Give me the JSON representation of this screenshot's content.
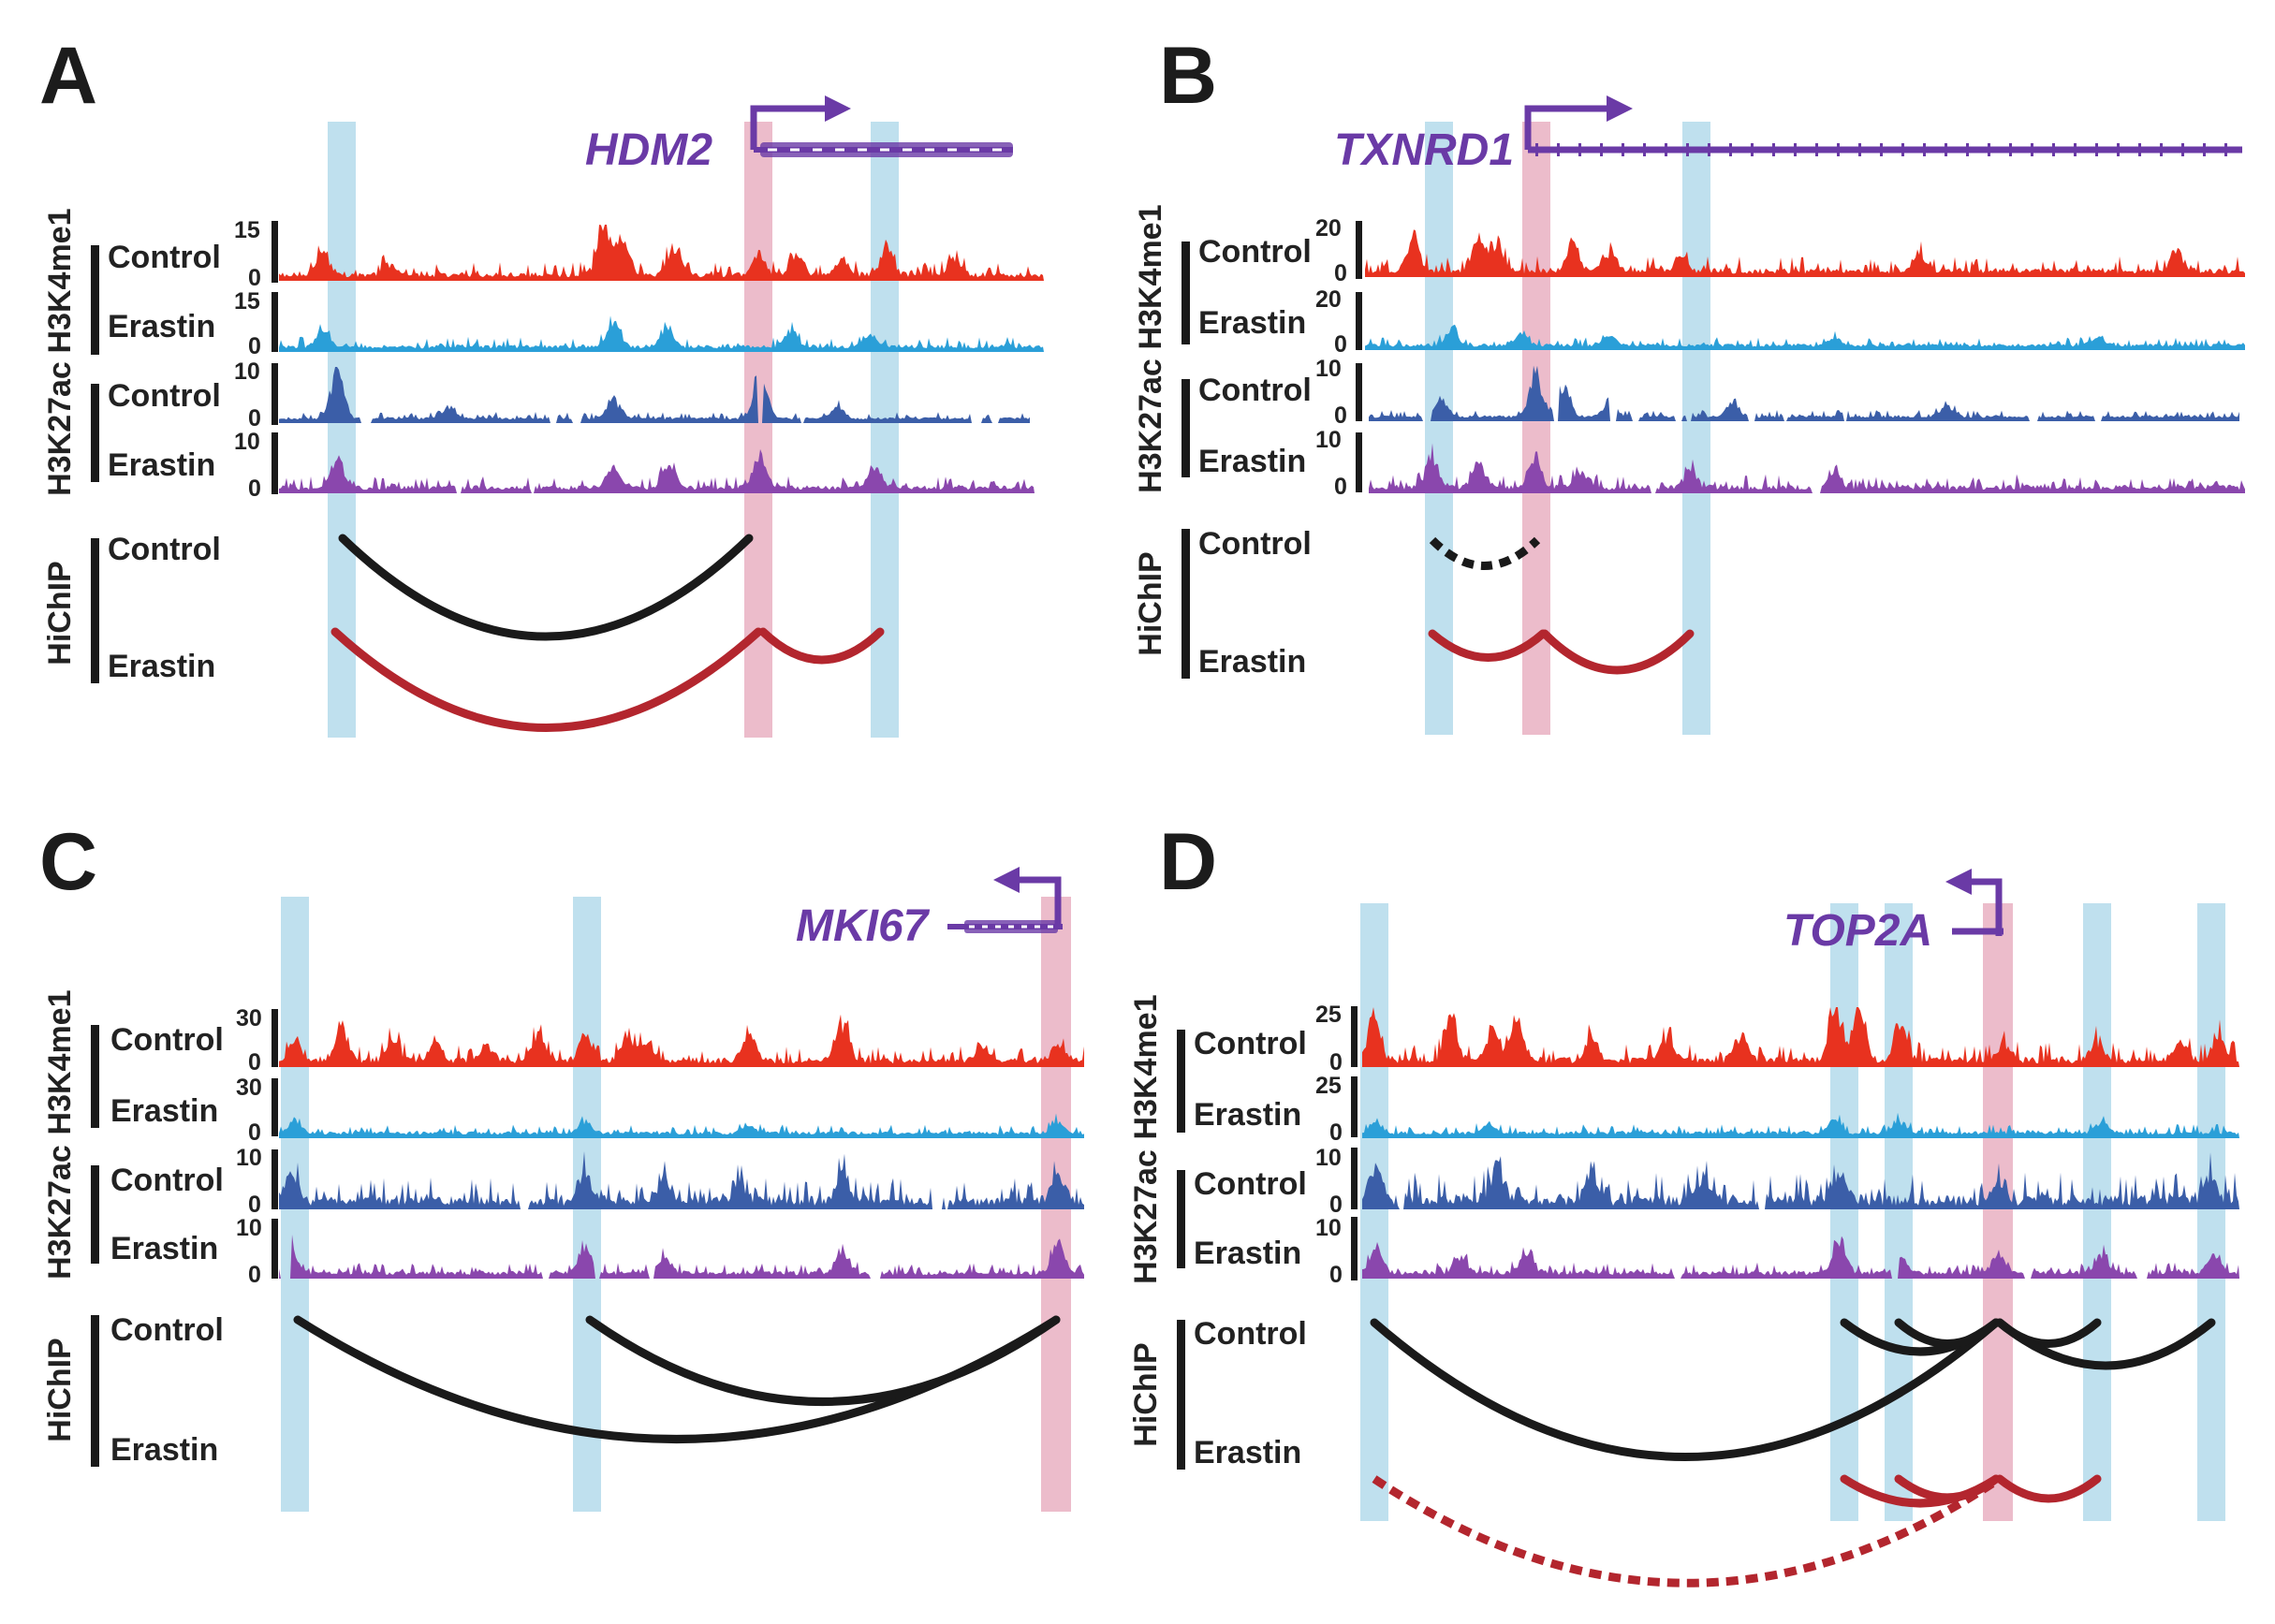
{
  "colors": {
    "h3k4me1_control": "#e8321f",
    "h3k4me1_erastin": "#2a9fd8",
    "h3k27ac_control": "#3b5ea8",
    "h3k27ac_erastin": "#8a47ad",
    "gene": "#6a3aa6",
    "hichip_control": "#1a1a1a",
    "hichip_erastin": "#b3262e",
    "enhancer_band": "#a9d6e8",
    "promoter_band": "#e6a5b9"
  },
  "marks": {
    "h3k4me1": "H3K4me1",
    "h3k27ac": "H3K27ac",
    "hichip": "HiChIP"
  },
  "conditions": {
    "control": "Control",
    "erastin": "Erastin"
  },
  "panels": [
    {
      "letter": "A",
      "gene": "HDM2",
      "scale_h3k4me1": {
        "max": "15",
        "min": "0"
      },
      "scale_h3k27ac": {
        "max": "10",
        "min": "0"
      }
    },
    {
      "letter": "B",
      "gene": "TXNRD1",
      "scale_h3k4me1": {
        "max": "20",
        "min": "0"
      },
      "scale_h3k27ac": {
        "max": "10",
        "min": "0"
      }
    },
    {
      "letter": "C",
      "gene": "MKI67",
      "scale_h3k4me1": {
        "max": "30",
        "min": "0"
      },
      "scale_h3k27ac": {
        "max": "10",
        "min": "0"
      }
    },
    {
      "letter": "D",
      "gene": "TOP2A",
      "scale_h3k4me1": {
        "max": "25",
        "min": "0"
      },
      "scale_h3k27ac": {
        "max": "10",
        "min": "0"
      }
    }
  ]
}
